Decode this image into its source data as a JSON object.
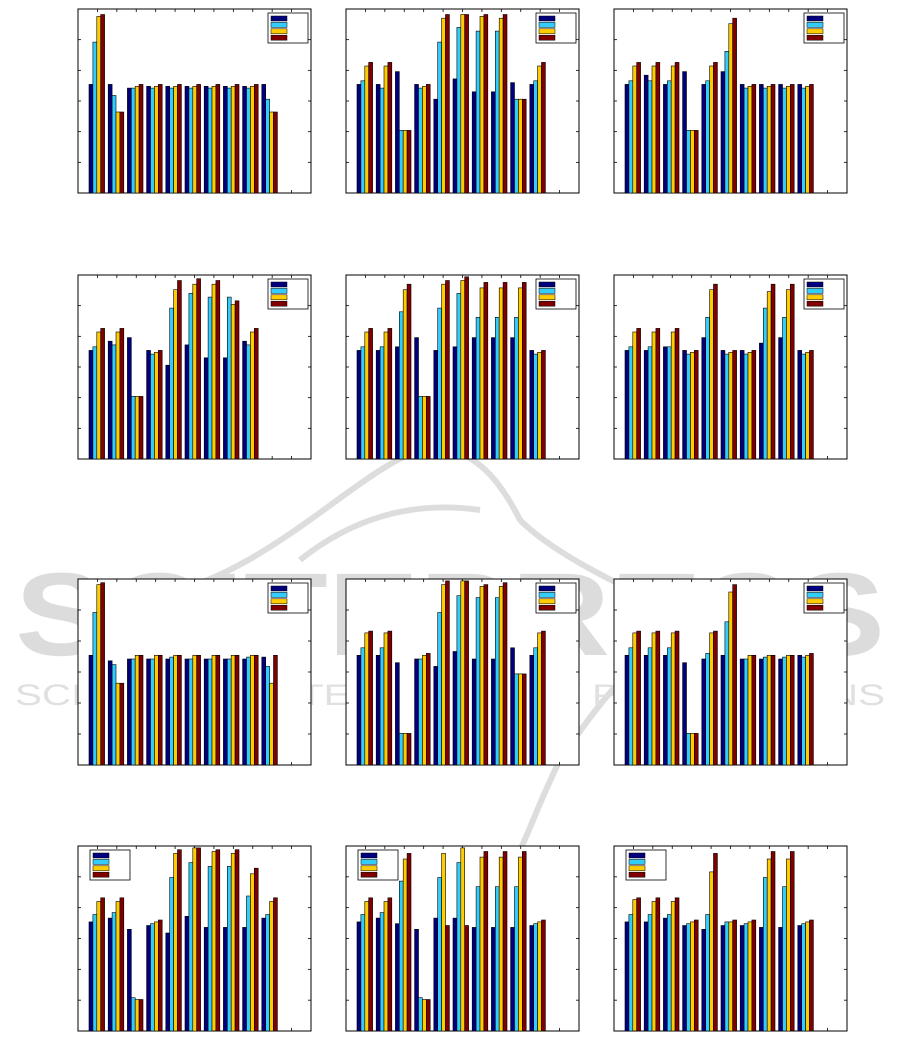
{
  "colors": {
    "series": [
      "#00007f",
      "#33ccff",
      "#ffcc00",
      "#800000"
    ],
    "watermark": "#d9d9d9",
    "axis": "#000000",
    "background": "#ffffff"
  },
  "watermark": {
    "main_text": "SCITEPRESS",
    "sub_text": "SCIENCE AND TECHNOLOGY PUBLICATIONS"
  },
  "chart_data": [
    {
      "type": "bar",
      "grid": "off",
      "legend": "top-right",
      "ylim": [
        0,
        1
      ],
      "x_tick_count": 12,
      "y_tick_count": 6,
      "series": [
        {
          "values": [
            0.59,
            0.59,
            0.57,
            0.58,
            0.58,
            0.58,
            0.58,
            0.58,
            0.58,
            0.59
          ]
        },
        {
          "values": [
            0.82,
            0.53,
            0.57,
            0.57,
            0.57,
            0.57,
            0.57,
            0.57,
            0.57,
            0.51
          ]
        },
        {
          "values": [
            0.96,
            0.44,
            0.58,
            0.58,
            0.58,
            0.58,
            0.58,
            0.58,
            0.58,
            0.44
          ]
        },
        {
          "values": [
            0.97,
            0.44,
            0.59,
            0.59,
            0.59,
            0.59,
            0.59,
            0.59,
            0.59,
            0.44
          ]
        }
      ]
    },
    {
      "type": "bar",
      "grid": "off",
      "legend": "top-right",
      "ylim": [
        0,
        1
      ],
      "x_tick_count": 12,
      "y_tick_count": 6,
      "series": [
        {
          "values": [
            0.59,
            0.59,
            0.66,
            0.59,
            0.51,
            0.62,
            0.55,
            0.55,
            0.6,
            0.59
          ]
        },
        {
          "values": [
            0.61,
            0.57,
            0.34,
            0.57,
            0.82,
            0.9,
            0.88,
            0.88,
            0.51,
            0.61
          ]
        },
        {
          "values": [
            0.69,
            0.69,
            0.34,
            0.58,
            0.95,
            0.97,
            0.96,
            0.95,
            0.51,
            0.69
          ]
        },
        {
          "values": [
            0.71,
            0.71,
            0.34,
            0.59,
            0.97,
            0.97,
            0.97,
            0.97,
            0.51,
            0.71
          ]
        }
      ]
    },
    {
      "type": "bar",
      "grid": "off",
      "legend": "top-right",
      "ylim": [
        0,
        1
      ],
      "x_tick_count": 12,
      "y_tick_count": 6,
      "series": [
        {
          "values": [
            0.59,
            0.64,
            0.59,
            0.66,
            0.59,
            0.66,
            0.59,
            0.59,
            0.59,
            0.59
          ]
        },
        {
          "values": [
            0.61,
            0.61,
            0.61,
            0.34,
            0.61,
            0.77,
            0.57,
            0.57,
            0.57,
            0.57
          ]
        },
        {
          "values": [
            0.69,
            0.69,
            0.69,
            0.34,
            0.69,
            0.92,
            0.58,
            0.58,
            0.58,
            0.58
          ]
        },
        {
          "values": [
            0.71,
            0.71,
            0.71,
            0.34,
            0.71,
            0.95,
            0.59,
            0.59,
            0.59,
            0.59
          ]
        }
      ]
    },
    {
      "type": "bar",
      "grid": "off",
      "legend": "top-right",
      "ylim": [
        0,
        1
      ],
      "x_tick_count": 12,
      "y_tick_count": 6,
      "series": [
        {
          "values": [
            0.59,
            0.64,
            0.66,
            0.59,
            0.51,
            0.62,
            0.55,
            0.55,
            0.64
          ]
        },
        {
          "values": [
            0.61,
            0.62,
            0.34,
            0.57,
            0.82,
            0.9,
            0.88,
            0.88,
            0.62
          ]
        },
        {
          "values": [
            0.69,
            0.69,
            0.34,
            0.58,
            0.92,
            0.95,
            0.95,
            0.84,
            0.69
          ]
        },
        {
          "values": [
            0.71,
            0.71,
            0.34,
            0.59,
            0.97,
            0.98,
            0.97,
            0.86,
            0.71
          ]
        }
      ]
    },
    {
      "type": "bar",
      "grid": "off",
      "legend": "top-right",
      "ylim": [
        0,
        1
      ],
      "x_tick_count": 12,
      "y_tick_count": 6,
      "series": [
        {
          "values": [
            0.59,
            0.59,
            0.61,
            0.66,
            0.59,
            0.61,
            0.66,
            0.66,
            0.66,
            0.59
          ]
        },
        {
          "values": [
            0.61,
            0.61,
            0.8,
            0.34,
            0.82,
            0.9,
            0.77,
            0.77,
            0.77,
            0.57
          ]
        },
        {
          "values": [
            0.69,
            0.69,
            0.92,
            0.34,
            0.95,
            0.97,
            0.93,
            0.93,
            0.93,
            0.58
          ]
        },
        {
          "values": [
            0.71,
            0.71,
            0.95,
            0.34,
            0.97,
            0.99,
            0.96,
            0.96,
            0.96,
            0.59
          ]
        }
      ]
    },
    {
      "type": "bar",
      "grid": "off",
      "legend": "top-right",
      "ylim": [
        0,
        1
      ],
      "x_tick_count": 12,
      "y_tick_count": 6,
      "series": [
        {
          "values": [
            0.59,
            0.59,
            0.61,
            0.59,
            0.66,
            0.59,
            0.59,
            0.63,
            0.66,
            0.59
          ]
        },
        {
          "values": [
            0.61,
            0.61,
            0.61,
            0.57,
            0.77,
            0.57,
            0.57,
            0.82,
            0.77,
            0.57
          ]
        },
        {
          "values": [
            0.69,
            0.69,
            0.69,
            0.58,
            0.92,
            0.58,
            0.58,
            0.91,
            0.92,
            0.58
          ]
        },
        {
          "values": [
            0.71,
            0.71,
            0.71,
            0.59,
            0.95,
            0.59,
            0.59,
            0.95,
            0.95,
            0.59
          ]
        }
      ]
    },
    {
      "type": "bar",
      "grid": "off",
      "legend": "top-right",
      "ylim": [
        0,
        1
      ],
      "x_tick_count": 12,
      "y_tick_count": 6,
      "series": [
        {
          "values": [
            0.59,
            0.56,
            0.57,
            0.57,
            0.57,
            0.57,
            0.57,
            0.57,
            0.57,
            0.58
          ]
        },
        {
          "values": [
            0.82,
            0.54,
            0.57,
            0.57,
            0.58,
            0.57,
            0.57,
            0.57,
            0.58,
            0.53
          ]
        },
        {
          "values": [
            0.97,
            0.44,
            0.59,
            0.59,
            0.59,
            0.59,
            0.59,
            0.59,
            0.59,
            0.44
          ]
        },
        {
          "values": [
            0.98,
            0.44,
            0.59,
            0.59,
            0.59,
            0.59,
            0.59,
            0.59,
            0.59,
            0.59
          ]
        }
      ]
    },
    {
      "type": "bar",
      "grid": "off",
      "legend": "top-right",
      "ylim": [
        0,
        1
      ],
      "x_tick_count": 12,
      "y_tick_count": 6,
      "series": [
        {
          "values": [
            0.59,
            0.59,
            0.55,
            0.57,
            0.53,
            0.61,
            0.57,
            0.57,
            0.63,
            0.59
          ]
        },
        {
          "values": [
            0.63,
            0.63,
            0.17,
            0.57,
            0.82,
            0.91,
            0.9,
            0.9,
            0.49,
            0.63
          ]
        },
        {
          "values": [
            0.71,
            0.71,
            0.17,
            0.59,
            0.97,
            0.99,
            0.96,
            0.96,
            0.49,
            0.71
          ]
        },
        {
          "values": [
            0.72,
            0.72,
            0.17,
            0.6,
            0.99,
            0.99,
            0.97,
            0.98,
            0.49,
            0.72
          ]
        }
      ]
    },
    {
      "type": "bar",
      "grid": "off",
      "legend": "top-right",
      "ylim": [
        0,
        1
      ],
      "x_tick_count": 12,
      "y_tick_count": 6,
      "series": [
        {
          "values": [
            0.59,
            0.59,
            0.59,
            0.55,
            0.57,
            0.59,
            0.57,
            0.57,
            0.57,
            0.59
          ]
        },
        {
          "values": [
            0.63,
            0.63,
            0.63,
            0.17,
            0.6,
            0.77,
            0.57,
            0.58,
            0.58,
            0.58
          ]
        },
        {
          "values": [
            0.71,
            0.71,
            0.71,
            0.17,
            0.71,
            0.93,
            0.59,
            0.59,
            0.59,
            0.59
          ]
        },
        {
          "values": [
            0.72,
            0.72,
            0.72,
            0.17,
            0.72,
            0.97,
            0.59,
            0.59,
            0.59,
            0.6
          ]
        }
      ]
    },
    {
      "type": "bar",
      "grid": "off",
      "legend": "top-left",
      "ylim": [
        0,
        1
      ],
      "x_tick_count": 12,
      "y_tick_count": 6,
      "series": [
        {
          "values": [
            0.59,
            0.61,
            0.55,
            0.57,
            0.53,
            0.62,
            0.56,
            0.56,
            0.56,
            0.61
          ]
        },
        {
          "values": [
            0.63,
            0.64,
            0.18,
            0.58,
            0.83,
            0.91,
            0.89,
            0.89,
            0.73,
            0.63
          ]
        },
        {
          "values": [
            0.7,
            0.7,
            0.17,
            0.59,
            0.96,
            0.99,
            0.97,
            0.96,
            0.85,
            0.7
          ]
        },
        {
          "values": [
            0.72,
            0.72,
            0.17,
            0.6,
            0.98,
            0.99,
            0.98,
            0.98,
            0.88,
            0.72
          ]
        }
      ]
    },
    {
      "type": "bar",
      "grid": "off",
      "legend": "top-left",
      "ylim": [
        0,
        1
      ],
      "x_tick_count": 12,
      "y_tick_count": 6,
      "series": [
        {
          "values": [
            0.59,
            0.61,
            0.58,
            0.55,
            0.61,
            0.61,
            0.56,
            0.56,
            0.56,
            0.57
          ]
        },
        {
          "values": [
            0.63,
            0.64,
            0.81,
            0.18,
            0.83,
            0.91,
            0.78,
            0.78,
            0.78,
            0.58
          ]
        },
        {
          "values": [
            0.7,
            0.7,
            0.93,
            0.17,
            0.96,
            0.99,
            0.94,
            0.94,
            0.94,
            0.59
          ]
        },
        {
          "values": [
            0.72,
            0.72,
            0.96,
            0.17,
            0.57,
            0.57,
            0.97,
            0.97,
            0.97,
            0.6
          ]
        }
      ]
    },
    {
      "type": "bar",
      "grid": "off",
      "legend": "top-left",
      "ylim": [
        0,
        1
      ],
      "x_tick_count": 12,
      "y_tick_count": 6,
      "series": [
        {
          "values": [
            0.59,
            0.59,
            0.61,
            0.57,
            0.55,
            0.57,
            0.57,
            0.56,
            0.56,
            0.57
          ]
        },
        {
          "values": [
            0.63,
            0.63,
            0.63,
            0.58,
            0.63,
            0.59,
            0.58,
            0.83,
            0.78,
            0.58
          ]
        },
        {
          "values": [
            0.71,
            0.7,
            0.7,
            0.59,
            0.86,
            0.59,
            0.59,
            0.93,
            0.93,
            0.59
          ]
        },
        {
          "values": [
            0.72,
            0.72,
            0.72,
            0.6,
            0.96,
            0.6,
            0.6,
            0.97,
            0.97,
            0.6
          ]
        }
      ]
    }
  ]
}
